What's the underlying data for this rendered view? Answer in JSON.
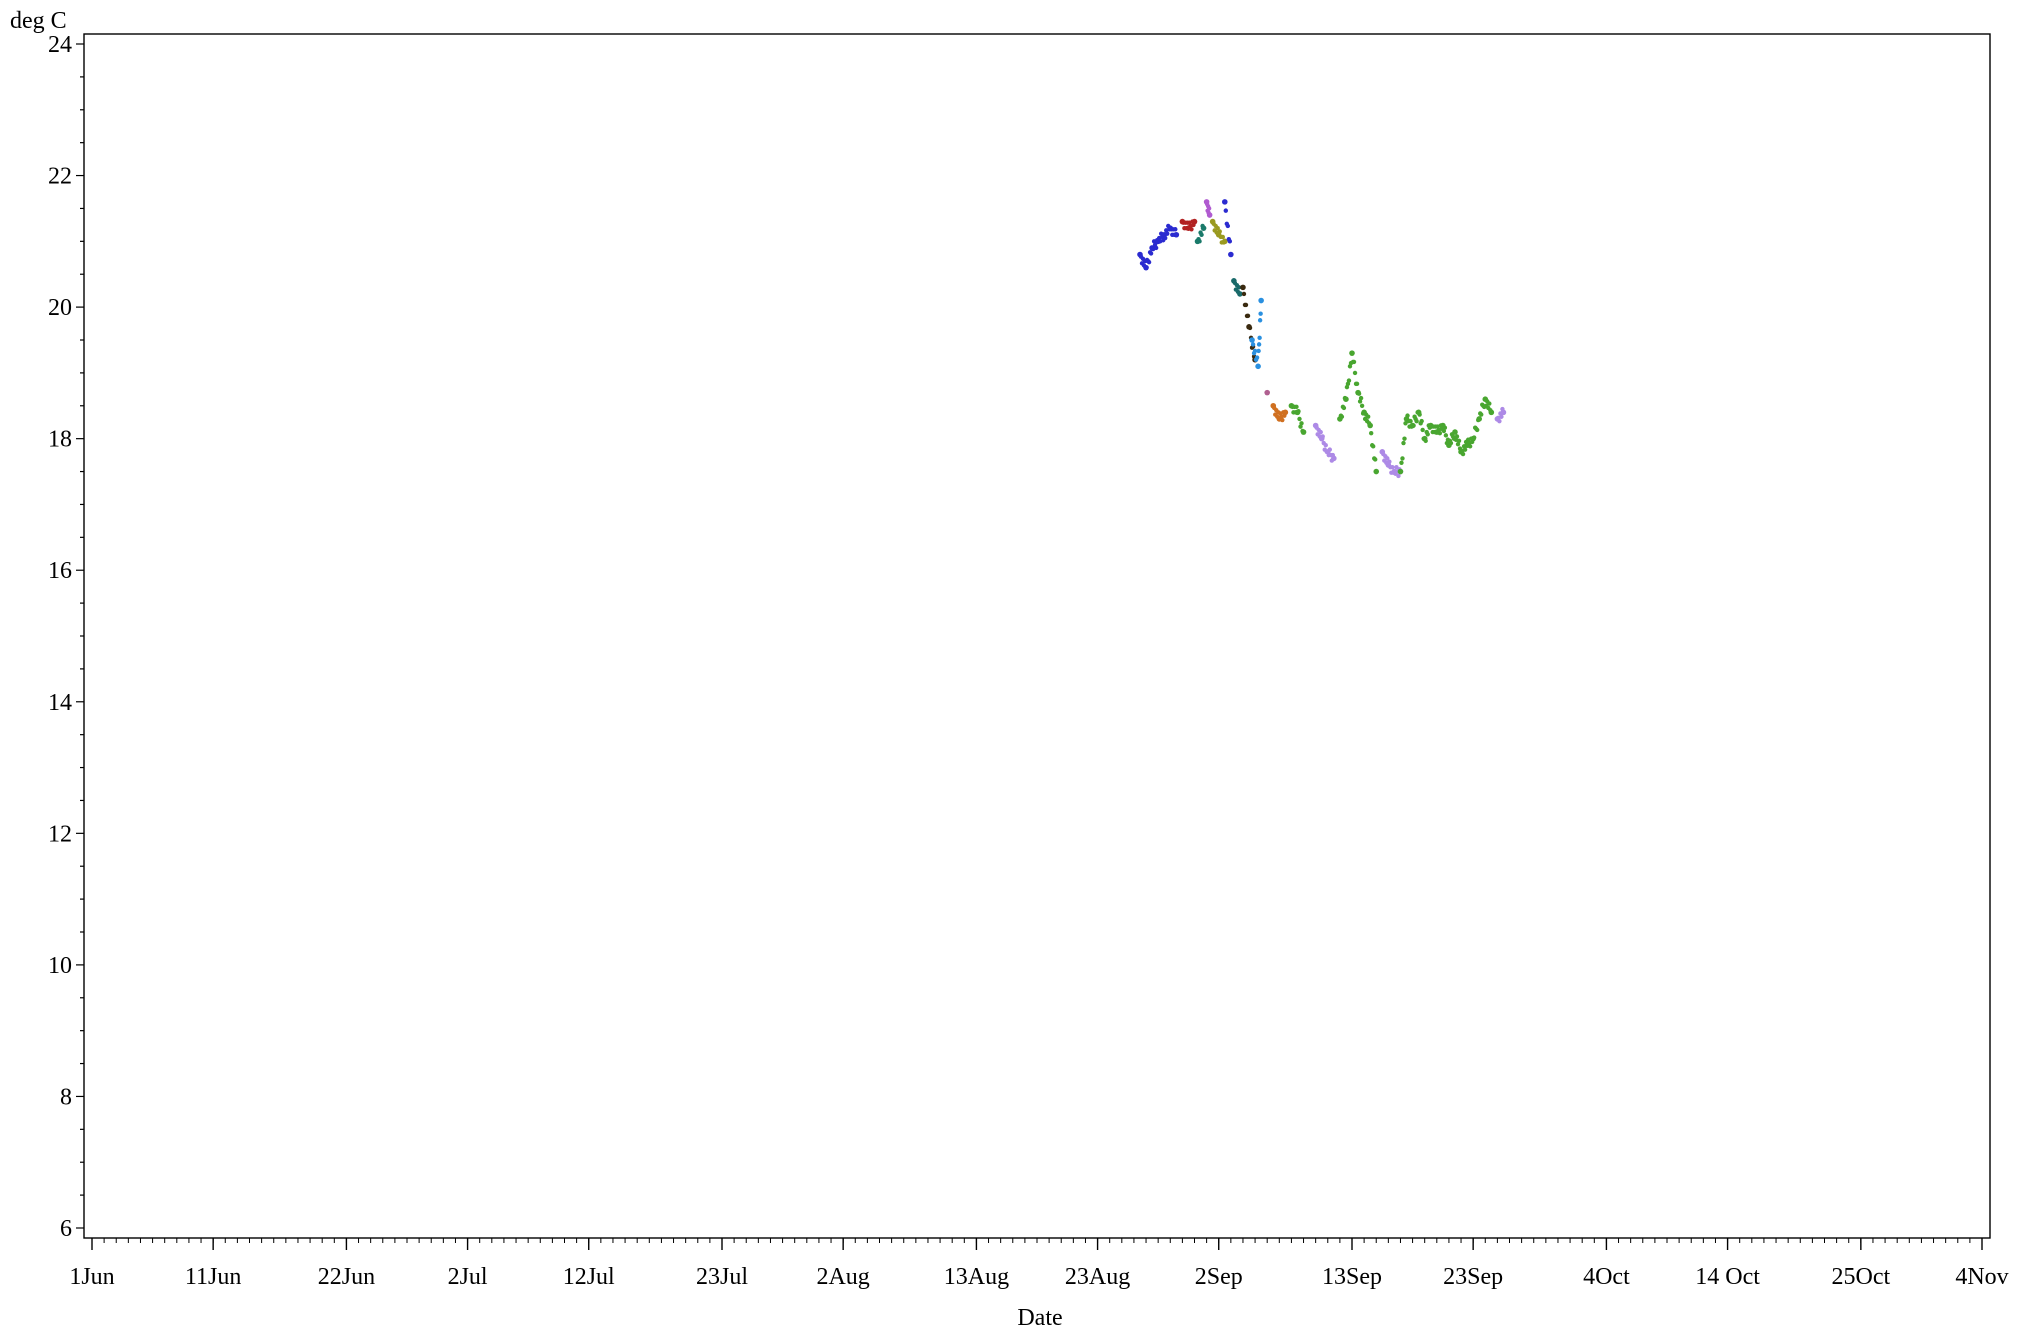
{
  "chart_data": {
    "type": "scatter",
    "title": "",
    "xlabel": "Date",
    "ylabel": "deg C",
    "xlim": [
      "2024-06-01",
      "2024-11-04"
    ],
    "ylim": [
      6,
      24
    ],
    "yticks": [
      6,
      8,
      10,
      12,
      14,
      16,
      18,
      20,
      22,
      24
    ],
    "xticks": [
      {
        "label": "1Jun",
        "date": "2024-06-01"
      },
      {
        "label": "11Jun",
        "date": "2024-06-11"
      },
      {
        "label": "22Jun",
        "date": "2024-06-22"
      },
      {
        "label": "2Jul",
        "date": "2024-07-02"
      },
      {
        "label": "12Jul",
        "date": "2024-07-12"
      },
      {
        "label": "23Jul",
        "date": "2024-07-23"
      },
      {
        "label": "2Aug",
        "date": "2024-08-02"
      },
      {
        "label": "13Aug",
        "date": "2024-08-13"
      },
      {
        "label": "23Aug",
        "date": "2024-08-23"
      },
      {
        "label": "2Sep",
        "date": "2024-09-02"
      },
      {
        "label": "13Sep",
        "date": "2024-09-13"
      },
      {
        "label": "23Sep",
        "date": "2024-09-23"
      },
      {
        "label": "4Oct",
        "date": "2024-10-04"
      },
      {
        "label": "14 Oct",
        "date": "2024-10-14"
      },
      {
        "label": "25Oct",
        "date": "2024-10-25"
      },
      {
        "label": "4Nov",
        "date": "2024-11-04"
      }
    ],
    "grid": false,
    "legend": "none",
    "series": [
      {
        "color": "#2b2bd0",
        "x": [
          "2024-08-26 12:00",
          "2024-08-27 00:00",
          "2024-08-27 12:00",
          "2024-08-28 00:00",
          "2024-08-28 12:00",
          "2024-08-29 00:00",
          "2024-08-29 12:00"
        ],
        "y": [
          20.8,
          20.6,
          20.9,
          21.0,
          21.1,
          21.2,
          21.1
        ]
      },
      {
        "color": "#b22222",
        "x": [
          "2024-08-30 00:00",
          "2024-08-30 12:00",
          "2024-08-31 00:00"
        ],
        "y": [
          21.3,
          21.2,
          21.3
        ]
      },
      {
        "color": "#1a7a6a",
        "x": [
          "2024-08-31 06:00",
          "2024-08-31 18:00"
        ],
        "y": [
          21.0,
          21.2
        ]
      },
      {
        "color": "#b05bd0",
        "x": [
          "2024-09-01 00:00",
          "2024-09-01 06:00"
        ],
        "y": [
          21.6,
          21.4
        ]
      },
      {
        "color": "#9a9a20",
        "x": [
          "2024-09-01 12:00",
          "2024-09-02 00:00",
          "2024-09-02 12:00"
        ],
        "y": [
          21.3,
          21.1,
          21.0
        ]
      },
      {
        "color": "#2b2bd0",
        "x": [
          "2024-09-02 12:00",
          "2024-09-03 00:00"
        ],
        "y": [
          21.6,
          20.8
        ]
      },
      {
        "color": "#1a6a6a",
        "x": [
          "2024-09-03 06:00",
          "2024-09-03 18:00"
        ],
        "y": [
          20.4,
          20.2
        ]
      },
      {
        "color": "#3a2a10",
        "x": [
          "2024-09-04 00:00",
          "2024-09-04 12:00",
          "2024-09-05 00:00"
        ],
        "y": [
          20.3,
          19.7,
          19.2
        ]
      },
      {
        "color": "#2a90e0",
        "x": [
          "2024-09-04 18:00",
          "2024-09-05 06:00",
          "2024-09-05 12:00"
        ],
        "y": [
          19.5,
          19.1,
          20.1
        ]
      },
      {
        "color": "#b06090",
        "x": [
          "2024-09-06 00:00"
        ],
        "y": [
          18.7
        ]
      },
      {
        "color": "#d07020",
        "x": [
          "2024-09-06 12:00",
          "2024-09-07 00:00",
          "2024-09-07 12:00"
        ],
        "y": [
          18.5,
          18.3,
          18.4
        ]
      },
      {
        "color": "#49a630",
        "x": [
          "2024-09-08 00:00",
          "2024-09-08 12:00",
          "2024-09-09 00:00"
        ],
        "y": [
          18.5,
          18.4,
          18.1
        ]
      },
      {
        "color": "#ad8ae6",
        "x": [
          "2024-09-10 00:00",
          "2024-09-10 12:00",
          "2024-09-11 00:00",
          "2024-09-11 12:00"
        ],
        "y": [
          18.2,
          18.0,
          17.8,
          17.7
        ]
      },
      {
        "color": "#49a630",
        "x": [
          "2024-09-12 00:00",
          "2024-09-12 12:00",
          "2024-09-13 00:00",
          "2024-09-13 12:00",
          "2024-09-14 00:00",
          "2024-09-14 12:00",
          "2024-09-15 00:00"
        ],
        "y": [
          18.3,
          18.6,
          19.3,
          18.7,
          18.4,
          18.2,
          17.5
        ]
      },
      {
        "color": "#ad8ae6",
        "x": [
          "2024-09-15 12:00",
          "2024-09-16 00:00",
          "2024-09-16 12:00",
          "2024-09-17 00:00"
        ],
        "y": [
          17.8,
          17.6,
          17.5,
          17.5
        ]
      },
      {
        "color": "#49a630",
        "x": [
          "2024-09-17 00:00",
          "2024-09-17 12:00",
          "2024-09-18 00:00",
          "2024-09-18 12:00",
          "2024-09-19 00:00",
          "2024-09-19 12:00",
          "2024-09-20 00:00",
          "2024-09-20 12:00",
          "2024-09-21 00:00",
          "2024-09-21 12:00",
          "2024-09-22 00:00",
          "2024-09-22 12:00",
          "2024-09-23 00:00",
          "2024-09-23 12:00",
          "2024-09-24 00:00",
          "2024-09-24 12:00"
        ],
        "y": [
          17.5,
          18.3,
          18.2,
          18.4,
          18.0,
          18.2,
          18.1,
          18.2,
          17.9,
          18.1,
          17.8,
          17.9,
          18.0,
          18.3,
          18.6,
          18.4
        ]
      },
      {
        "color": "#ad8ae6",
        "x": [
          "2024-09-25 00:00",
          "2024-09-25 12:00"
        ],
        "y": [
          18.3,
          18.4
        ]
      }
    ]
  }
}
